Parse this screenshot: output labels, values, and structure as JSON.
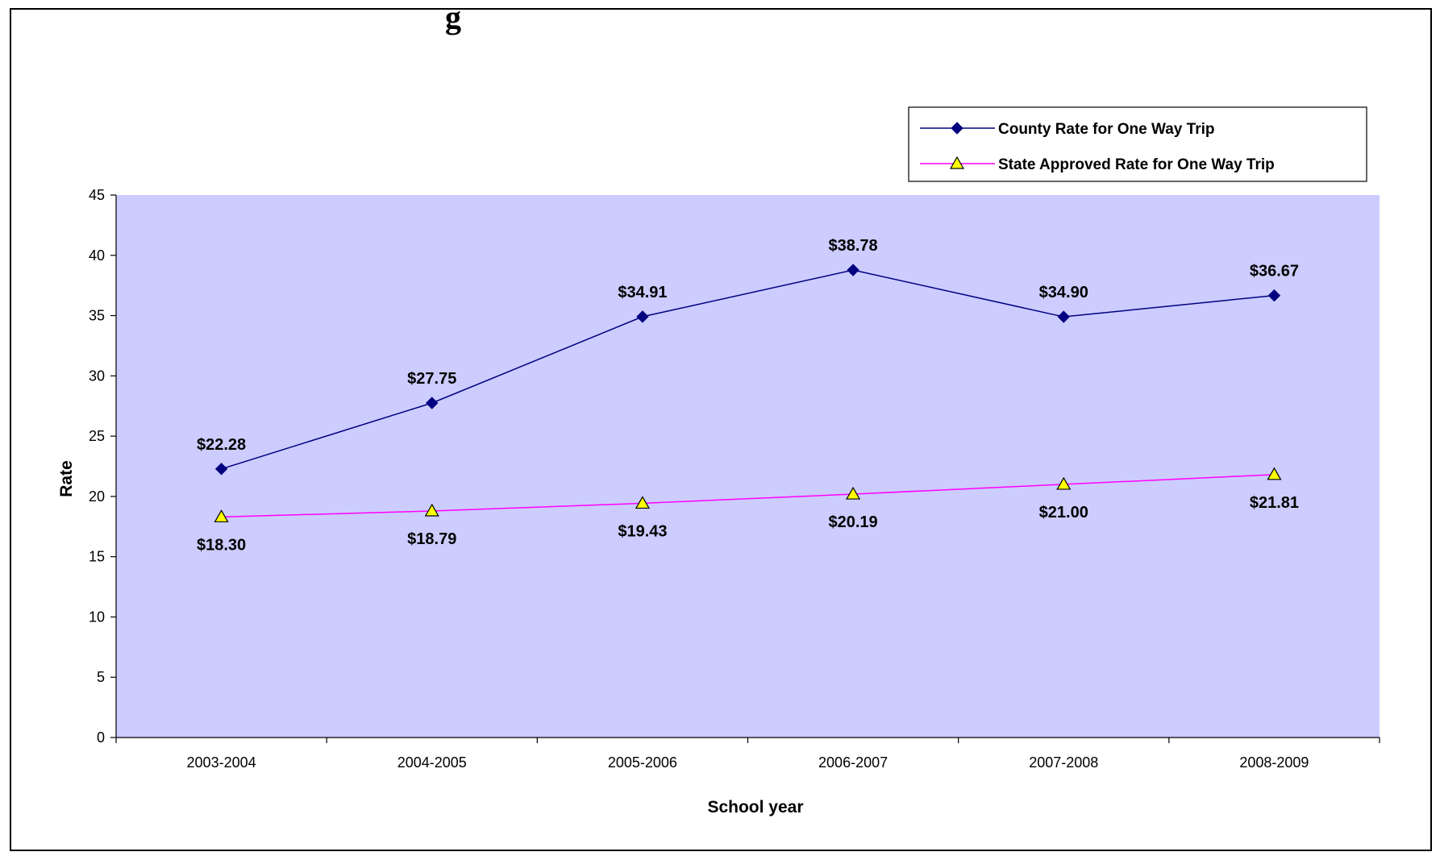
{
  "header": {
    "cut_off_title_fragment": "g"
  },
  "chart_data": {
    "type": "line",
    "categories": [
      "2003-2004",
      "2004-2005",
      "2005-2006",
      "2006-2007",
      "2007-2008",
      "2008-2009"
    ],
    "series": [
      {
        "name": "County Rate for One Way Trip",
        "values": [
          22.28,
          27.75,
          34.91,
          38.78,
          34.9,
          36.67
        ],
        "labels": [
          "$22.28",
          "$27.75",
          "$34.91",
          "$38.78",
          "$34.90",
          "$36.67"
        ],
        "color": "#000080",
        "marker": "diamond",
        "marker_fill": "#000080",
        "label_position": "above"
      },
      {
        "name": "State Approved Rate for One Way Trip",
        "values": [
          18.3,
          18.79,
          19.43,
          20.19,
          21.0,
          21.81
        ],
        "labels": [
          "$18.30",
          "$18.79",
          "$19.43",
          "$20.19",
          "$21.00",
          "$21.81"
        ],
        "color": "#ff00ff",
        "marker": "triangle",
        "marker_fill": "#ffff00",
        "label_position": "below"
      }
    ],
    "xlabel": "School year",
    "ylabel": "Rate",
    "ylim": [
      0,
      45
    ],
    "yticks": [
      0,
      5,
      10,
      15,
      20,
      25,
      30,
      35,
      40,
      45
    ],
    "plot_background": "#ccccff",
    "grid": false,
    "legend_position": "top-right"
  }
}
